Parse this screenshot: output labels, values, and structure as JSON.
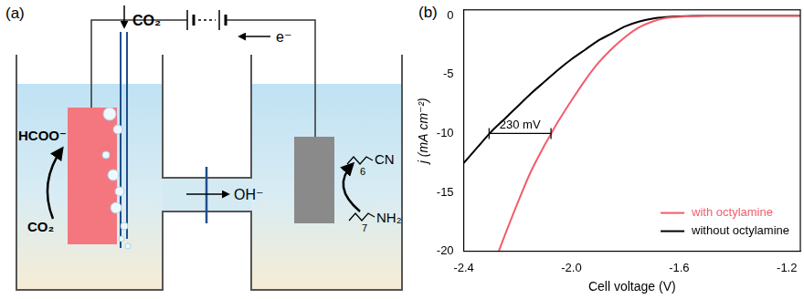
{
  "diagram": {
    "label": "(a)",
    "texts": {
      "gas_in": "CO₂",
      "electron": "e⁻",
      "product": "HCOO⁻",
      "reactant": "CO₂",
      "ion": "OH⁻",
      "nitrile": "CN",
      "nitrile_chain": "6",
      "amine": "NH₂",
      "amine_chain": "7"
    }
  },
  "chart_data": {
    "type": "line",
    "title": "(b)",
    "x_label": "Cell voltage (V)",
    "y_label": "j (mA cm⁻²)",
    "xlim": [
      -2.4,
      -1.15
    ],
    "xticks": [
      -2.4,
      {
        "value": -2.0,
        "label": "-2.0"
      },
      -1.6,
      -1.2
    ],
    "ylim": [
      -20,
      0.5
    ],
    "yticks": [
      0,
      -5,
      -10,
      -15,
      -20
    ],
    "grid": false,
    "legend": "lower right",
    "series": [
      {
        "name": "with octylamine",
        "color": "#f25c6b",
        "x": [
          -2.27,
          -2.25,
          -2.2,
          -2.15,
          -2.1,
          -2.075,
          -2.05,
          -2.0,
          -1.95,
          -1.9,
          -1.85,
          -1.8,
          -1.75,
          -1.7,
          -1.65,
          -1.6,
          -1.55,
          -1.5,
          -1.4,
          -1.3,
          -1.2,
          -1.15
        ],
        "values": [
          -20,
          -18.8,
          -15.9,
          -13.2,
          -11.0,
          -10,
          -9.0,
          -7.2,
          -5.5,
          -4.0,
          -2.8,
          -1.8,
          -1.0,
          -0.5,
          -0.2,
          -0.1,
          -0.03,
          0,
          0,
          0,
          0,
          0
        ]
      },
      {
        "name": "without octylamine",
        "color": "#000000",
        "x": [
          -2.4,
          -2.35,
          -2.3,
          -2.25,
          -2.2,
          -2.15,
          -2.1,
          -2.05,
          -2.0,
          -1.95,
          -1.9,
          -1.85,
          -1.8,
          -1.75,
          -1.7,
          -1.65,
          -1.6,
          -1.5,
          -1.4,
          -1.3,
          -1.2,
          -1.15
        ],
        "values": [
          -12.5,
          -11.2,
          -9.9,
          -8.8,
          -7.7,
          -6.6,
          -5.6,
          -4.6,
          -3.7,
          -2.9,
          -2.1,
          -1.5,
          -0.9,
          -0.5,
          -0.25,
          -0.12,
          -0.05,
          0,
          0,
          0,
          0,
          0
        ]
      }
    ],
    "annotations": [
      {
        "text": "230 mV",
        "x": [
          -2.306,
          -2.076
        ],
        "y": -10
      }
    ]
  }
}
